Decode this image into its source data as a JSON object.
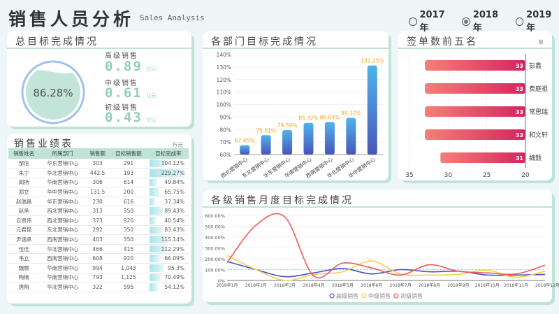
{
  "header": {
    "title": "销售人员分析",
    "subtitle": "Sales Analysis",
    "years": [
      {
        "label": "2017年",
        "selected": false
      },
      {
        "label": "2018年",
        "selected": true
      },
      {
        "label": "2019年",
        "selected": false
      }
    ]
  },
  "overall": {
    "title": "总目标完成情况",
    "rate": "86.28%",
    "rate_value": 86.28,
    "items": [
      {
        "label": "高级销售",
        "value": "0.89",
        "unit": "亿元"
      },
      {
        "label": "中级销售",
        "value": "0.61",
        "unit": "亿元"
      },
      {
        "label": "初级销售",
        "value": "0.43",
        "unit": "亿元"
      }
    ]
  },
  "table": {
    "title": "销售业绩表",
    "unit": "万元",
    "columns": [
      "销售姓名",
      "所属部门",
      "销售额",
      "目标销售额",
      "目标完成率"
    ],
    "rows": [
      [
        "邹信",
        "华东营销中心",
        "303",
        "291",
        "104.12%"
      ],
      [
        "朱宁",
        "华北营销中心",
        "442.5",
        "193",
        "229.27%"
      ],
      [
        "闻扬",
        "华南营销中心",
        "306",
        "614",
        "49.84%"
      ],
      [
        "郑立",
        "华中营销中心",
        "131.5",
        "200",
        "65.75%"
      ],
      [
        "赵瑞昌",
        "华东营销中心",
        "230",
        "616",
        "37.34%"
      ],
      [
        "赵承",
        "西北营销中心",
        "313",
        "350",
        "89.43%"
      ],
      [
        "云思伟",
        "西北营销中心",
        "373",
        "920",
        "40.54%"
      ],
      [
        "元君昆",
        "东北营销中心",
        "292",
        "350",
        "83.43%"
      ],
      [
        "尹涵承",
        "西南营销中心",
        "403",
        "350",
        "115.14%"
      ],
      [
        "伍佳",
        "华北营销中心",
        "466",
        "415",
        "112.29%"
      ],
      [
        "韦立",
        "西南营销中心",
        "608",
        "920",
        "66.09%"
      ],
      [
        "魏颢",
        "华南营销中心",
        "994",
        "1,043",
        "95.3%"
      ],
      [
        "陶楠",
        "华南营销中心",
        "793",
        "1,125",
        "70.49%"
      ],
      [
        "唐翔",
        "华北营销中心",
        "322",
        "595",
        "54.12%"
      ]
    ]
  },
  "dept": {
    "title": "各部门目标完成情况",
    "chart_data": {
      "type": "bar",
      "categories": [
        "西北营销中心",
        "东北营销中心",
        "华东营销中心",
        "华南营销中心",
        "西南营销中心",
        "华北营销中心",
        "华中营销中心"
      ],
      "values": [
        67.45,
        75.51,
        79.59,
        85.32,
        86.03,
        89.32,
        131.25
      ],
      "labels": [
        "67.45%",
        "75.51%",
        "79.59%",
        "85.32%",
        "86.03%",
        "89.32%",
        "131.25%"
      ],
      "ylim": [
        60,
        140
      ],
      "yticks": [
        "60%",
        "70%",
        "80%",
        "90%",
        "100%",
        "110%",
        "120%",
        "130%",
        "140%"
      ],
      "colors": {
        "top": "#4fb3ec",
        "bottom": "#4a55b8",
        "label": "#f5a623"
      }
    }
  },
  "top5": {
    "title": "签单数前五名",
    "unit": "单",
    "chart_data": {
      "type": "bar",
      "orientation": "horizontal-reversed",
      "categories": [
        "彭鑫",
        "费庭祖",
        "常思瑞",
        "和文轩",
        "魏颢"
      ],
      "values": [
        33,
        33,
        33,
        33,
        31
      ],
      "xlim": [
        35,
        20
      ],
      "xticks": [
        "35",
        "30",
        "25",
        "20"
      ],
      "colors": {
        "from": "#f48077",
        "to": "#d6245f"
      }
    }
  },
  "monthly": {
    "title": "各级销售月度目标完成情况",
    "chart_data": {
      "type": "line",
      "x": [
        "2018年1月",
        "2018年2月",
        "2018年3月",
        "2018年4月",
        "2018年5月",
        "2018年6月",
        "2018年7月",
        "2018年8月",
        "2018年9月",
        "2018年10月",
        "2018年11月",
        "2018年12月"
      ],
      "xtick_labels": [
        "2018年1月",
        "2018年2月",
        "2018年3月",
        "2018年4月",
        "2018年5月",
        "2018年6月",
        "2018年7月",
        "2018年8月",
        "2018年9月",
        "2018年10月",
        "2018年11月",
        "2018年12"
      ],
      "series": [
        {
          "name": "高级销售",
          "color": "#4a4fc4",
          "values": [
            175,
            100,
            35,
            70,
            110,
            60,
            100,
            80,
            85,
            50,
            50,
            55
          ]
        },
        {
          "name": "中级销售",
          "color": "#f7cd4a",
          "values": [
            230,
            100,
            0,
            55,
            80,
            180,
            60,
            50,
            55,
            95,
            30,
            85
          ]
        },
        {
          "name": "初级销售",
          "color": "#f05a5a",
          "values": [
            165,
            510,
            585,
            40,
            160,
            115,
            50,
            145,
            85,
            70,
            60,
            140
          ]
        }
      ],
      "ylim": [
        0,
        600
      ],
      "yticks": [
        "0%",
        "100.00%",
        "200.00%",
        "300.00%",
        "400.00%",
        "500.00%",
        "600.00%"
      ],
      "reference_line": 100,
      "legend": "bottom"
    }
  }
}
